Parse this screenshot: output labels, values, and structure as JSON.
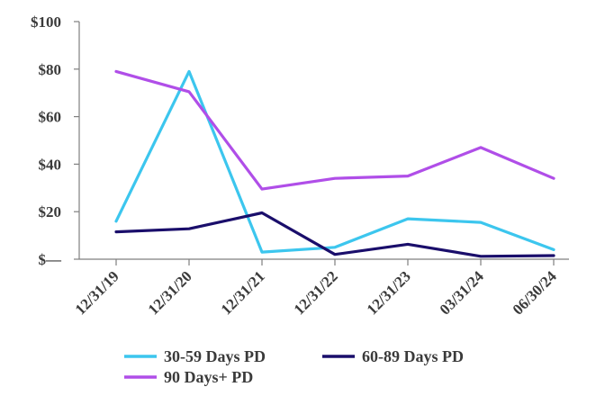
{
  "chart_data": {
    "type": "line",
    "title": "",
    "xlabel": "",
    "ylabel": "",
    "categories": [
      "12/31/19",
      "12/31/20",
      "12/31/21",
      "12/31/22",
      "12/31/23",
      "03/31/24",
      "06/30/24"
    ],
    "ylim": [
      0,
      100
    ],
    "yticks": [
      0,
      20,
      40,
      60,
      80,
      100
    ],
    "ytick_labels": [
      "$—",
      "$20",
      "$40",
      "$60",
      "$80",
      "$100"
    ],
    "grid": false,
    "legend_position": "bottom",
    "series": [
      {
        "name": "30-59 Days PD",
        "color": "#3cc6ee",
        "values": [
          16,
          79,
          3,
          5,
          17,
          15.5,
          4
        ]
      },
      {
        "name": "60-89 Days PD",
        "color": "#1a0e6b",
        "values": [
          11.5,
          12.8,
          19.5,
          2,
          6.3,
          1.2,
          1.5
        ]
      },
      {
        "name": "90 Days+ PD",
        "color": "#b04ee8",
        "values": [
          79,
          70.5,
          29.5,
          34,
          35,
          47,
          34
        ]
      }
    ]
  }
}
